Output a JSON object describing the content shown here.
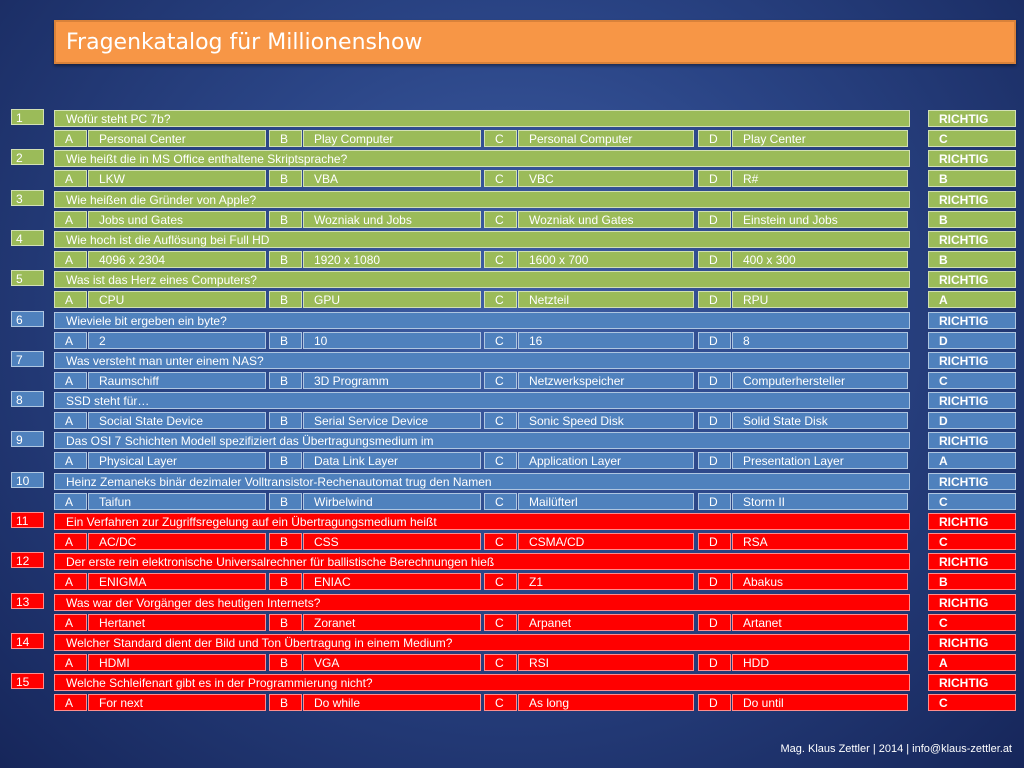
{
  "title": "Fragenkatalog für Millionenshow",
  "footer": "Mag. Klaus Zettler | 2014 | info@klaus-zettler.at",
  "colors": {
    "green": "#9bbb59",
    "blue": "#4f81bd",
    "red": "#ff0000",
    "title_bg": "#f79646"
  },
  "result_label": "RICHTIG",
  "option_labels": [
    "A",
    "B",
    "C",
    "D"
  ],
  "questions": [
    {
      "num": "1",
      "color": "green",
      "q": "Wofür steht PC 7b?",
      "a": [
        "Personal Center",
        "Play Computer",
        "Personal Computer",
        "Play Center"
      ],
      "answer": "C"
    },
    {
      "num": "2",
      "color": "green",
      "q": "Wie heißt die in MS Office enthaltene Skriptsprache?",
      "a": [
        "LKW",
        "VBA",
        "VBC",
        "R#"
      ],
      "answer": "B"
    },
    {
      "num": "3",
      "color": "green",
      "q": "Wie heißen die Gründer von Apple?",
      "a": [
        "Jobs und Gates",
        "Wozniak und Jobs",
        "Wozniak und Gates",
        "Einstein und Jobs"
      ],
      "answer": "B"
    },
    {
      "num": "4",
      "color": "green",
      "q": "Wie hoch ist die Auflösung bei Full HD",
      "a": [
        "4096 x 2304",
        "1920 x 1080",
        "1600 x 700",
        "400 x 300"
      ],
      "answer": "B"
    },
    {
      "num": "5",
      "color": "green",
      "q": "Was ist das Herz eines Computers?",
      "a": [
        "CPU",
        "GPU",
        "Netzteil",
        "RPU"
      ],
      "answer": "A"
    },
    {
      "num": "6",
      "color": "blue",
      "q": "Wieviele bit ergeben ein byte?",
      "a": [
        "2",
        "10",
        "16",
        "8"
      ],
      "answer": "D"
    },
    {
      "num": "7",
      "color": "blue",
      "q": "Was versteht man unter einem NAS?",
      "a": [
        "Raumschiff",
        "3D Programm",
        "Netzwerkspeicher",
        "Computerhersteller"
      ],
      "answer": "C"
    },
    {
      "num": "8",
      "color": "blue",
      "q": "SSD steht für…",
      "a": [
        "Social State Device",
        "Serial Service Device",
        "Sonic Speed Disk",
        "Solid State Disk"
      ],
      "answer": "D"
    },
    {
      "num": "9",
      "color": "blue",
      "q": "Das OSI 7 Schichten Modell spezifiziert das Übertragungsmedium im",
      "a": [
        "Physical Layer",
        "Data Link Layer",
        "Application Layer",
        "Presentation Layer"
      ],
      "answer": "A"
    },
    {
      "num": "10",
      "color": "blue",
      "q": "Heinz Zemaneks binär dezimaler Volltransistor-Rechenautomat trug den Namen",
      "a": [
        "Taifun",
        "Wirbelwind",
        "Mailüfterl",
        "Storm II"
      ],
      "answer": "C"
    },
    {
      "num": "11",
      "color": "red",
      "q": "Ein Verfahren zur Zugriffsregelung auf ein Übertragungsmedium heißt",
      "a": [
        "AC/DC",
        "CSS",
        "CSMA/CD",
        "RSA"
      ],
      "answer": "C"
    },
    {
      "num": "12",
      "color": "red",
      "q": "Der erste rein elektronische Universalrechner für ballistische Berechnungen hieß",
      "a": [
        "ENIGMA",
        "ENIAC",
        "Z1",
        "Abakus"
      ],
      "answer": "B"
    },
    {
      "num": "13",
      "color": "red",
      "q": "Was war der Vorgänger des heutigen Internets?",
      "a": [
        "Hertanet",
        "Zoranet",
        "Arpanet",
        "Artanet"
      ],
      "answer": "C"
    },
    {
      "num": "14",
      "color": "red",
      "q": "Welcher Standard dient der Bild und Ton Übertragung in einem Medium?",
      "a": [
        "HDMI",
        "VGA",
        "RSI",
        "HDD"
      ],
      "answer": "A"
    },
    {
      "num": "15",
      "color": "red",
      "q": "Welche Schleifenart gibt es in der Programmierung nicht?",
      "a": [
        "For next",
        "Do while",
        "As long",
        "Do until"
      ],
      "answer": "C"
    }
  ]
}
